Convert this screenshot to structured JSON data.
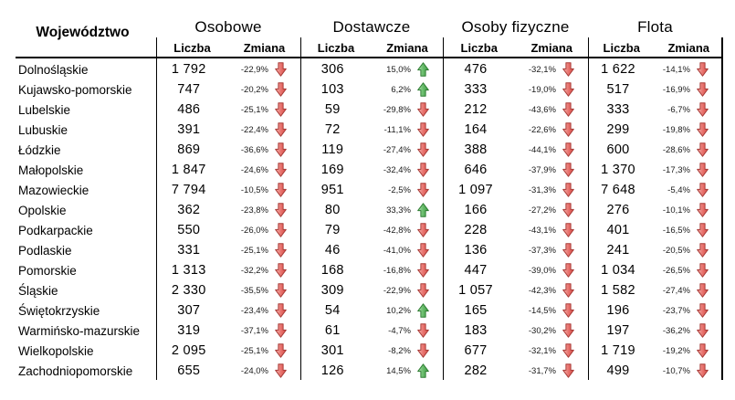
{
  "colors": {
    "up_arrow": "#57b15b",
    "down_arrow": "#e0605c",
    "line": "#000000",
    "text": "#000000"
  },
  "chart_data": {
    "type": "table",
    "row_header": "Województwo",
    "groups": [
      "Osobowe",
      "Dostawcze",
      "Osoby fizyczne",
      "Flota"
    ],
    "subcolumns": [
      "Liczba",
      "Zmiana"
    ],
    "rows": [
      {
        "name": "Dolnośląskie",
        "cells": [
          {
            "liczba": "1 792",
            "zmiana": "-22,9%",
            "dir": "down"
          },
          {
            "liczba": "306",
            "zmiana": "15,0%",
            "dir": "up"
          },
          {
            "liczba": "476",
            "zmiana": "-32,1%",
            "dir": "down"
          },
          {
            "liczba": "1 622",
            "zmiana": "-14,1%",
            "dir": "down"
          }
        ]
      },
      {
        "name": "Kujawsko-pomorskie",
        "cells": [
          {
            "liczba": "747",
            "zmiana": "-20,2%",
            "dir": "down"
          },
          {
            "liczba": "103",
            "zmiana": "6,2%",
            "dir": "up"
          },
          {
            "liczba": "333",
            "zmiana": "-19,0%",
            "dir": "down"
          },
          {
            "liczba": "517",
            "zmiana": "-16,9%",
            "dir": "down"
          }
        ]
      },
      {
        "name": "Lubelskie",
        "cells": [
          {
            "liczba": "486",
            "zmiana": "-25,1%",
            "dir": "down"
          },
          {
            "liczba": "59",
            "zmiana": "-29,8%",
            "dir": "down"
          },
          {
            "liczba": "212",
            "zmiana": "-43,6%",
            "dir": "down"
          },
          {
            "liczba": "333",
            "zmiana": "-6,7%",
            "dir": "down"
          }
        ]
      },
      {
        "name": "Lubuskie",
        "cells": [
          {
            "liczba": "391",
            "zmiana": "-22,4%",
            "dir": "down"
          },
          {
            "liczba": "72",
            "zmiana": "-11,1%",
            "dir": "down"
          },
          {
            "liczba": "164",
            "zmiana": "-22,6%",
            "dir": "down"
          },
          {
            "liczba": "299",
            "zmiana": "-19,8%",
            "dir": "down"
          }
        ]
      },
      {
        "name": "Łódzkie",
        "cells": [
          {
            "liczba": "869",
            "zmiana": "-36,6%",
            "dir": "down"
          },
          {
            "liczba": "119",
            "zmiana": "-27,4%",
            "dir": "down"
          },
          {
            "liczba": "388",
            "zmiana": "-44,1%",
            "dir": "down"
          },
          {
            "liczba": "600",
            "zmiana": "-28,6%",
            "dir": "down"
          }
        ]
      },
      {
        "name": "Małopolskie",
        "cells": [
          {
            "liczba": "1 847",
            "zmiana": "-24,6%",
            "dir": "down"
          },
          {
            "liczba": "169",
            "zmiana": "-32,4%",
            "dir": "down"
          },
          {
            "liczba": "646",
            "zmiana": "-37,9%",
            "dir": "down"
          },
          {
            "liczba": "1 370",
            "zmiana": "-17,3%",
            "dir": "down"
          }
        ]
      },
      {
        "name": "Mazowieckie",
        "cells": [
          {
            "liczba": "7 794",
            "zmiana": "-10,5%",
            "dir": "down"
          },
          {
            "liczba": "951",
            "zmiana": "-2,5%",
            "dir": "down"
          },
          {
            "liczba": "1 097",
            "zmiana": "-31,3%",
            "dir": "down"
          },
          {
            "liczba": "7 648",
            "zmiana": "-5,4%",
            "dir": "down"
          }
        ]
      },
      {
        "name": "Opolskie",
        "cells": [
          {
            "liczba": "362",
            "zmiana": "-23,8%",
            "dir": "down"
          },
          {
            "liczba": "80",
            "zmiana": "33,3%",
            "dir": "up"
          },
          {
            "liczba": "166",
            "zmiana": "-27,2%",
            "dir": "down"
          },
          {
            "liczba": "276",
            "zmiana": "-10,1%",
            "dir": "down"
          }
        ]
      },
      {
        "name": "Podkarpackie",
        "cells": [
          {
            "liczba": "550",
            "zmiana": "-26,0%",
            "dir": "down"
          },
          {
            "liczba": "79",
            "zmiana": "-42,8%",
            "dir": "down"
          },
          {
            "liczba": "228",
            "zmiana": "-43,1%",
            "dir": "down"
          },
          {
            "liczba": "401",
            "zmiana": "-16,5%",
            "dir": "down"
          }
        ]
      },
      {
        "name": "Podlaskie",
        "cells": [
          {
            "liczba": "331",
            "zmiana": "-25,1%",
            "dir": "down"
          },
          {
            "liczba": "46",
            "zmiana": "-41,0%",
            "dir": "down"
          },
          {
            "liczba": "136",
            "zmiana": "-37,3%",
            "dir": "down"
          },
          {
            "liczba": "241",
            "zmiana": "-20,5%",
            "dir": "down"
          }
        ]
      },
      {
        "name": "Pomorskie",
        "cells": [
          {
            "liczba": "1 313",
            "zmiana": "-32,2%",
            "dir": "down"
          },
          {
            "liczba": "168",
            "zmiana": "-16,8%",
            "dir": "down"
          },
          {
            "liczba": "447",
            "zmiana": "-39,0%",
            "dir": "down"
          },
          {
            "liczba": "1 034",
            "zmiana": "-26,5%",
            "dir": "down"
          }
        ]
      },
      {
        "name": "Śląskie",
        "cells": [
          {
            "liczba": "2 330",
            "zmiana": "-35,5%",
            "dir": "down"
          },
          {
            "liczba": "309",
            "zmiana": "-22,9%",
            "dir": "down"
          },
          {
            "liczba": "1 057",
            "zmiana": "-42,3%",
            "dir": "down"
          },
          {
            "liczba": "1 582",
            "zmiana": "-27,4%",
            "dir": "down"
          }
        ]
      },
      {
        "name": "Świętokrzyskie",
        "cells": [
          {
            "liczba": "307",
            "zmiana": "-23,4%",
            "dir": "down"
          },
          {
            "liczba": "54",
            "zmiana": "10,2%",
            "dir": "up"
          },
          {
            "liczba": "165",
            "zmiana": "-14,5%",
            "dir": "down"
          },
          {
            "liczba": "196",
            "zmiana": "-23,7%",
            "dir": "down"
          }
        ]
      },
      {
        "name": "Warmińsko-mazurskie",
        "cells": [
          {
            "liczba": "319",
            "zmiana": "-37,1%",
            "dir": "down"
          },
          {
            "liczba": "61",
            "zmiana": "-4,7%",
            "dir": "down"
          },
          {
            "liczba": "183",
            "zmiana": "-30,2%",
            "dir": "down"
          },
          {
            "liczba": "197",
            "zmiana": "-36,2%",
            "dir": "down"
          }
        ]
      },
      {
        "name": "Wielkopolskie",
        "cells": [
          {
            "liczba": "2 095",
            "zmiana": "-25,1%",
            "dir": "down"
          },
          {
            "liczba": "301",
            "zmiana": "-8,2%",
            "dir": "down"
          },
          {
            "liczba": "677",
            "zmiana": "-32,1%",
            "dir": "down"
          },
          {
            "liczba": "1 719",
            "zmiana": "-19,2%",
            "dir": "down"
          }
        ]
      },
      {
        "name": "Zachodniopomorskie",
        "cells": [
          {
            "liczba": "655",
            "zmiana": "-24,0%",
            "dir": "down"
          },
          {
            "liczba": "126",
            "zmiana": "14,5%",
            "dir": "up"
          },
          {
            "liczba": "282",
            "zmiana": "-31,7%",
            "dir": "down"
          },
          {
            "liczba": "499",
            "zmiana": "-10,7%",
            "dir": "down"
          }
        ]
      }
    ]
  }
}
